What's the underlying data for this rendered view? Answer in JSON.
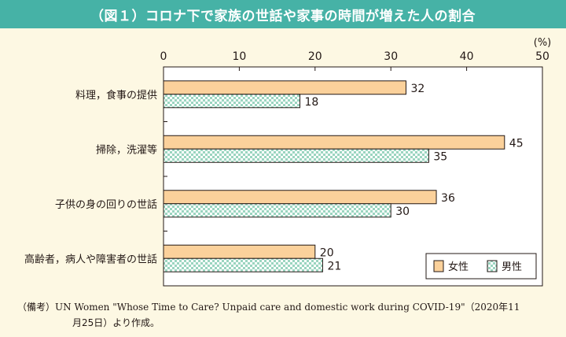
{
  "header": {
    "title": "（図１）コロナ下で家族の世話や家事の時間が増えた人の割合"
  },
  "chart_data": {
    "type": "bar",
    "orientation": "horizontal",
    "title": "（図１）コロナ下で家族の世話や家事の時間が増えた人の割合",
    "unit_label": "(%)",
    "categories": [
      "料理，食事の提供",
      "掃除，洗濯等",
      "子供の身の回りの世話",
      "高齢者，病人や障害者の世話"
    ],
    "series": [
      {
        "name": "女性",
        "values": [
          32,
          45,
          36,
          20
        ],
        "color": "#fbd19b"
      },
      {
        "name": "男性",
        "values": [
          18,
          35,
          30,
          21
        ],
        "color": "#d7f0e6"
      }
    ],
    "xlim": [
      0,
      50
    ],
    "xticks": [
      "0",
      "10",
      "20",
      "30",
      "40",
      "50"
    ],
    "legend_position": "bottom-right",
    "grid": false
  },
  "note": {
    "prefix": "（備考）",
    "line1": "UN Women \"Whose Time to Care? Unpaid care and domestic work during COVID-19\"（2020年11",
    "line2": "月25日）より作成。"
  }
}
